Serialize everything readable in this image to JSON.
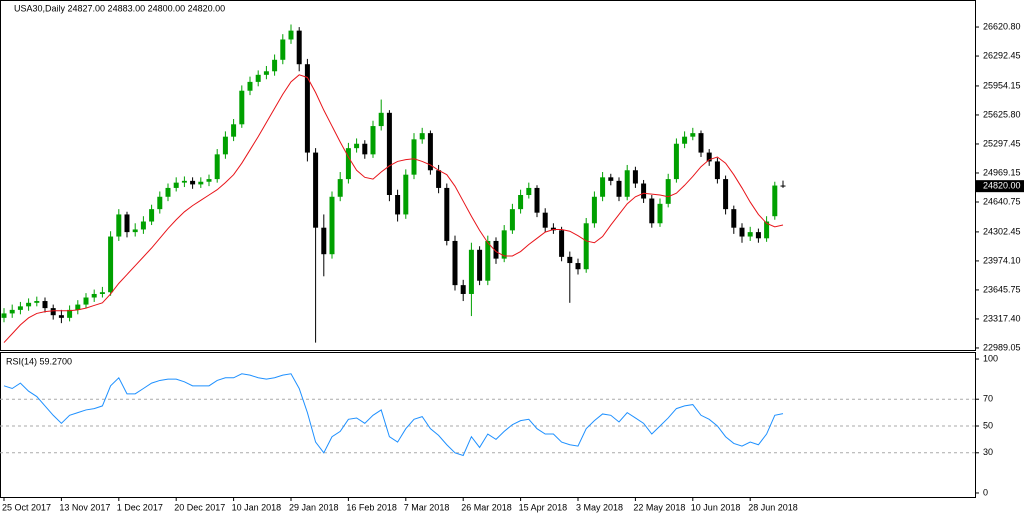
{
  "chart_data": [
    {
      "type": "candlestick",
      "title": "USA30,Daily  24827.00 24883.00 24800.00 24820.00",
      "categories": [
        "25 Oct 2017",
        null,
        null,
        null,
        null,
        null,
        null,
        "13 Nov 2017",
        null,
        null,
        null,
        null,
        null,
        null,
        "1 Dec 2017",
        null,
        null,
        null,
        null,
        null,
        null,
        "20 Dec 2017",
        null,
        null,
        null,
        null,
        null,
        null,
        "10 Jan 2018",
        null,
        null,
        null,
        null,
        null,
        null,
        "29 Jan 2018",
        null,
        null,
        null,
        null,
        null,
        null,
        "16 Feb 2018",
        null,
        null,
        null,
        null,
        null,
        null,
        "7 Mar 2018",
        null,
        null,
        null,
        null,
        null,
        null,
        "26 Mar 2018",
        null,
        null,
        null,
        null,
        null,
        null,
        "15 Apr 2018",
        null,
        null,
        null,
        null,
        null,
        null,
        "3 May 2018",
        null,
        null,
        null,
        null,
        null,
        null,
        "22 May 2018",
        null,
        null,
        null,
        null,
        null,
        null,
        "10 Jun 2018",
        null,
        null,
        null,
        null,
        null,
        null,
        "28 Jun 2018",
        null,
        null,
        null,
        null
      ],
      "open": [
        23330,
        23380,
        23420,
        23460,
        23500,
        23520,
        23440,
        23360,
        23330,
        23420,
        23480,
        23560,
        23600,
        23620,
        24250,
        24500,
        24300,
        24330,
        24420,
        24560,
        24700,
        24800,
        24860,
        24880,
        24840,
        24870,
        24900,
        25180,
        25380,
        25520,
        25900,
        26000,
        26080,
        26120,
        26250,
        26480,
        26580,
        26200,
        25200,
        24350,
        24050,
        24700,
        24900,
        25250,
        25300,
        25180,
        25500,
        25650,
        24720,
        24500,
        24950,
        25350,
        25420,
        25000,
        24800,
        24200,
        23700,
        23600,
        24100,
        23750,
        24200,
        24000,
        24320,
        24560,
        24720,
        24800,
        24520,
        24350,
        24320,
        24020,
        23950,
        23880,
        24400,
        24700,
        24920,
        24880,
        24700,
        25000,
        24850,
        24680,
        24400,
        24620,
        24900,
        25300,
        25380,
        25420,
        25200,
        25100,
        24900,
        24560,
        24350,
        24250,
        24300,
        24230,
        24480,
        24827
      ],
      "high": [
        23440,
        23480,
        23510,
        23550,
        23570,
        23560,
        23480,
        23420,
        23470,
        23530,
        23610,
        23650,
        23680,
        24310,
        24560,
        24530,
        24400,
        24480,
        24610,
        24760,
        24850,
        24920,
        24930,
        24920,
        24920,
        24950,
        25240,
        25440,
        25580,
        25960,
        26060,
        26130,
        26180,
        26310,
        26540,
        26650,
        26620,
        26260,
        25250,
        24500,
        24760,
        24980,
        25310,
        25360,
        25340,
        25560,
        25800,
        25680,
        24780,
        25010,
        25420,
        25480,
        25450,
        25060,
        24850,
        24260,
        23760,
        24180,
        24140,
        24260,
        24240,
        24380,
        24620,
        24780,
        24860,
        24830,
        24570,
        24400,
        24360,
        24080,
        24000,
        24460,
        24760,
        24980,
        24960,
        24920,
        25060,
        25040,
        24890,
        24720,
        24680,
        24960,
        25360,
        25440,
        25480,
        25450,
        25240,
        25140,
        24940,
        24600,
        24400,
        24360,
        24340,
        24480,
        24870,
        24883
      ],
      "low": [
        23280,
        23330,
        23370,
        23410,
        23460,
        23390,
        23310,
        23270,
        23290,
        23370,
        23440,
        23510,
        23560,
        23580,
        24200,
        24240,
        24250,
        24280,
        24380,
        24510,
        24650,
        24760,
        24810,
        24790,
        24800,
        24820,
        24860,
        25130,
        25330,
        25480,
        25850,
        25950,
        26030,
        26070,
        26200,
        26430,
        26120,
        25100,
        23050,
        23800,
        24000,
        24650,
        24850,
        25200,
        25130,
        25140,
        25450,
        24650,
        24420,
        24450,
        24900,
        25300,
        24950,
        24740,
        24150,
        23640,
        23520,
        23350,
        23700,
        23700,
        23940,
        23960,
        24280,
        24510,
        24680,
        24470,
        24300,
        24280,
        23970,
        23500,
        23820,
        23840,
        24350,
        24650,
        24830,
        24650,
        24660,
        24800,
        24630,
        24350,
        24360,
        24580,
        24860,
        25250,
        25340,
        25150,
        25050,
        24850,
        24500,
        24280,
        24180,
        24200,
        24180,
        24190,
        24440,
        24800
      ],
      "close": [
        23380,
        23420,
        23460,
        23500,
        23520,
        23440,
        23360,
        23330,
        23420,
        23480,
        23560,
        23600,
        23620,
        24250,
        24500,
        24300,
        24330,
        24420,
        24560,
        24700,
        24800,
        24860,
        24880,
        24840,
        24870,
        24900,
        25180,
        25380,
        25520,
        25900,
        26000,
        26080,
        26120,
        26250,
        26480,
        26580,
        26200,
        25200,
        24350,
        24050,
        24700,
        24900,
        25250,
        25300,
        25180,
        25500,
        25650,
        24720,
        24500,
        24950,
        25350,
        25420,
        25000,
        24800,
        24200,
        23700,
        23600,
        24100,
        23750,
        24200,
        24000,
        24320,
        24560,
        24720,
        24800,
        24520,
        24350,
        24320,
        24020,
        23950,
        23880,
        24400,
        24700,
        24920,
        24880,
        24700,
        25000,
        24850,
        24680,
        24400,
        24620,
        24900,
        25300,
        25380,
        25420,
        25200,
        25100,
        24900,
        24560,
        24350,
        24250,
        24300,
        24230,
        24420,
        24827,
        24820
      ],
      "up_color": "#00a000",
      "down_color": "#000000",
      "overlay": {
        "color": "#e8141a",
        "values": [
          23050,
          23150,
          23250,
          23330,
          23380,
          23400,
          23410,
          23410,
          23410,
          23420,
          23440,
          23470,
          23500,
          23600,
          23720,
          23820,
          23920,
          24020,
          24120,
          24230,
          24340,
          24440,
          24530,
          24600,
          24660,
          24720,
          24780,
          24860,
          24950,
          25080,
          25230,
          25380,
          25540,
          25700,
          25860,
          26000,
          26080,
          26050,
          25880,
          25680,
          25500,
          25320,
          25150,
          25000,
          24920,
          24900,
          24980,
          25050,
          25100,
          25120,
          25130,
          25100,
          25060,
          25000,
          24950,
          24820,
          24650,
          24480,
          24320,
          24180,
          24080,
          24030,
          24030,
          24080,
          24160,
          24230,
          24300,
          24330,
          24330,
          24310,
          24260,
          24200,
          24180,
          24250,
          24380,
          24500,
          24620,
          24700,
          24740,
          24730,
          24720,
          24700,
          24740,
          24830,
          24930,
          25040,
          25120,
          25150,
          25080,
          24950,
          24800,
          24640,
          24500,
          24400,
          24360,
          24380
        ]
      },
      "ylim": [
        22966,
        26904
      ],
      "yticks": [
        {
          "value": 26620.8,
          "label": "26620.80"
        },
        {
          "value": 26292.45,
          "label": "26292.45"
        },
        {
          "value": 25954.15,
          "label": "25954.15"
        },
        {
          "value": 25625.8,
          "label": "25625.80"
        },
        {
          "value": 25297.45,
          "label": "25297.45"
        },
        {
          "value": 24969.15,
          "label": "24969.15"
        },
        {
          "value": 24640.75,
          "label": "24640.75"
        },
        {
          "value": 24302.45,
          "label": "24302.45"
        },
        {
          "value": 23974.1,
          "label": "23974.10"
        },
        {
          "value": 23645.75,
          "label": "23645.75"
        },
        {
          "value": 23317.4,
          "label": "23317.40"
        },
        {
          "value": 22989.05,
          "label": "22989.05"
        }
      ],
      "last_price": {
        "value": 24820,
        "label": "24820.00"
      }
    },
    {
      "type": "line",
      "title": "RSI(14) 59.2700",
      "color": "#1e90ff",
      "values": [
        80,
        78,
        82,
        76,
        72,
        65,
        58,
        52,
        58,
        60,
        62,
        63,
        65,
        80,
        86,
        74,
        74,
        78,
        82,
        84,
        85,
        85,
        83,
        80,
        80,
        80,
        84,
        86,
        86,
        89,
        88,
        86,
        85,
        86,
        88,
        89,
        78,
        60,
        38,
        30,
        42,
        46,
        55,
        56,
        52,
        58,
        62,
        42,
        38,
        48,
        55,
        57,
        48,
        43,
        36,
        30,
        28,
        42,
        34,
        44,
        40,
        46,
        51,
        54,
        55,
        48,
        44,
        44,
        38,
        36,
        35,
        48,
        54,
        59,
        58,
        53,
        60,
        56,
        52,
        44,
        50,
        56,
        63,
        65,
        66,
        58,
        55,
        50,
        42,
        37,
        35,
        38,
        36,
        44,
        58,
        59.27
      ],
      "ylim": [
        -3,
        104.5
      ],
      "yticks": [
        100,
        70,
        50,
        30,
        0
      ],
      "levels": [
        70,
        50,
        30
      ]
    }
  ]
}
